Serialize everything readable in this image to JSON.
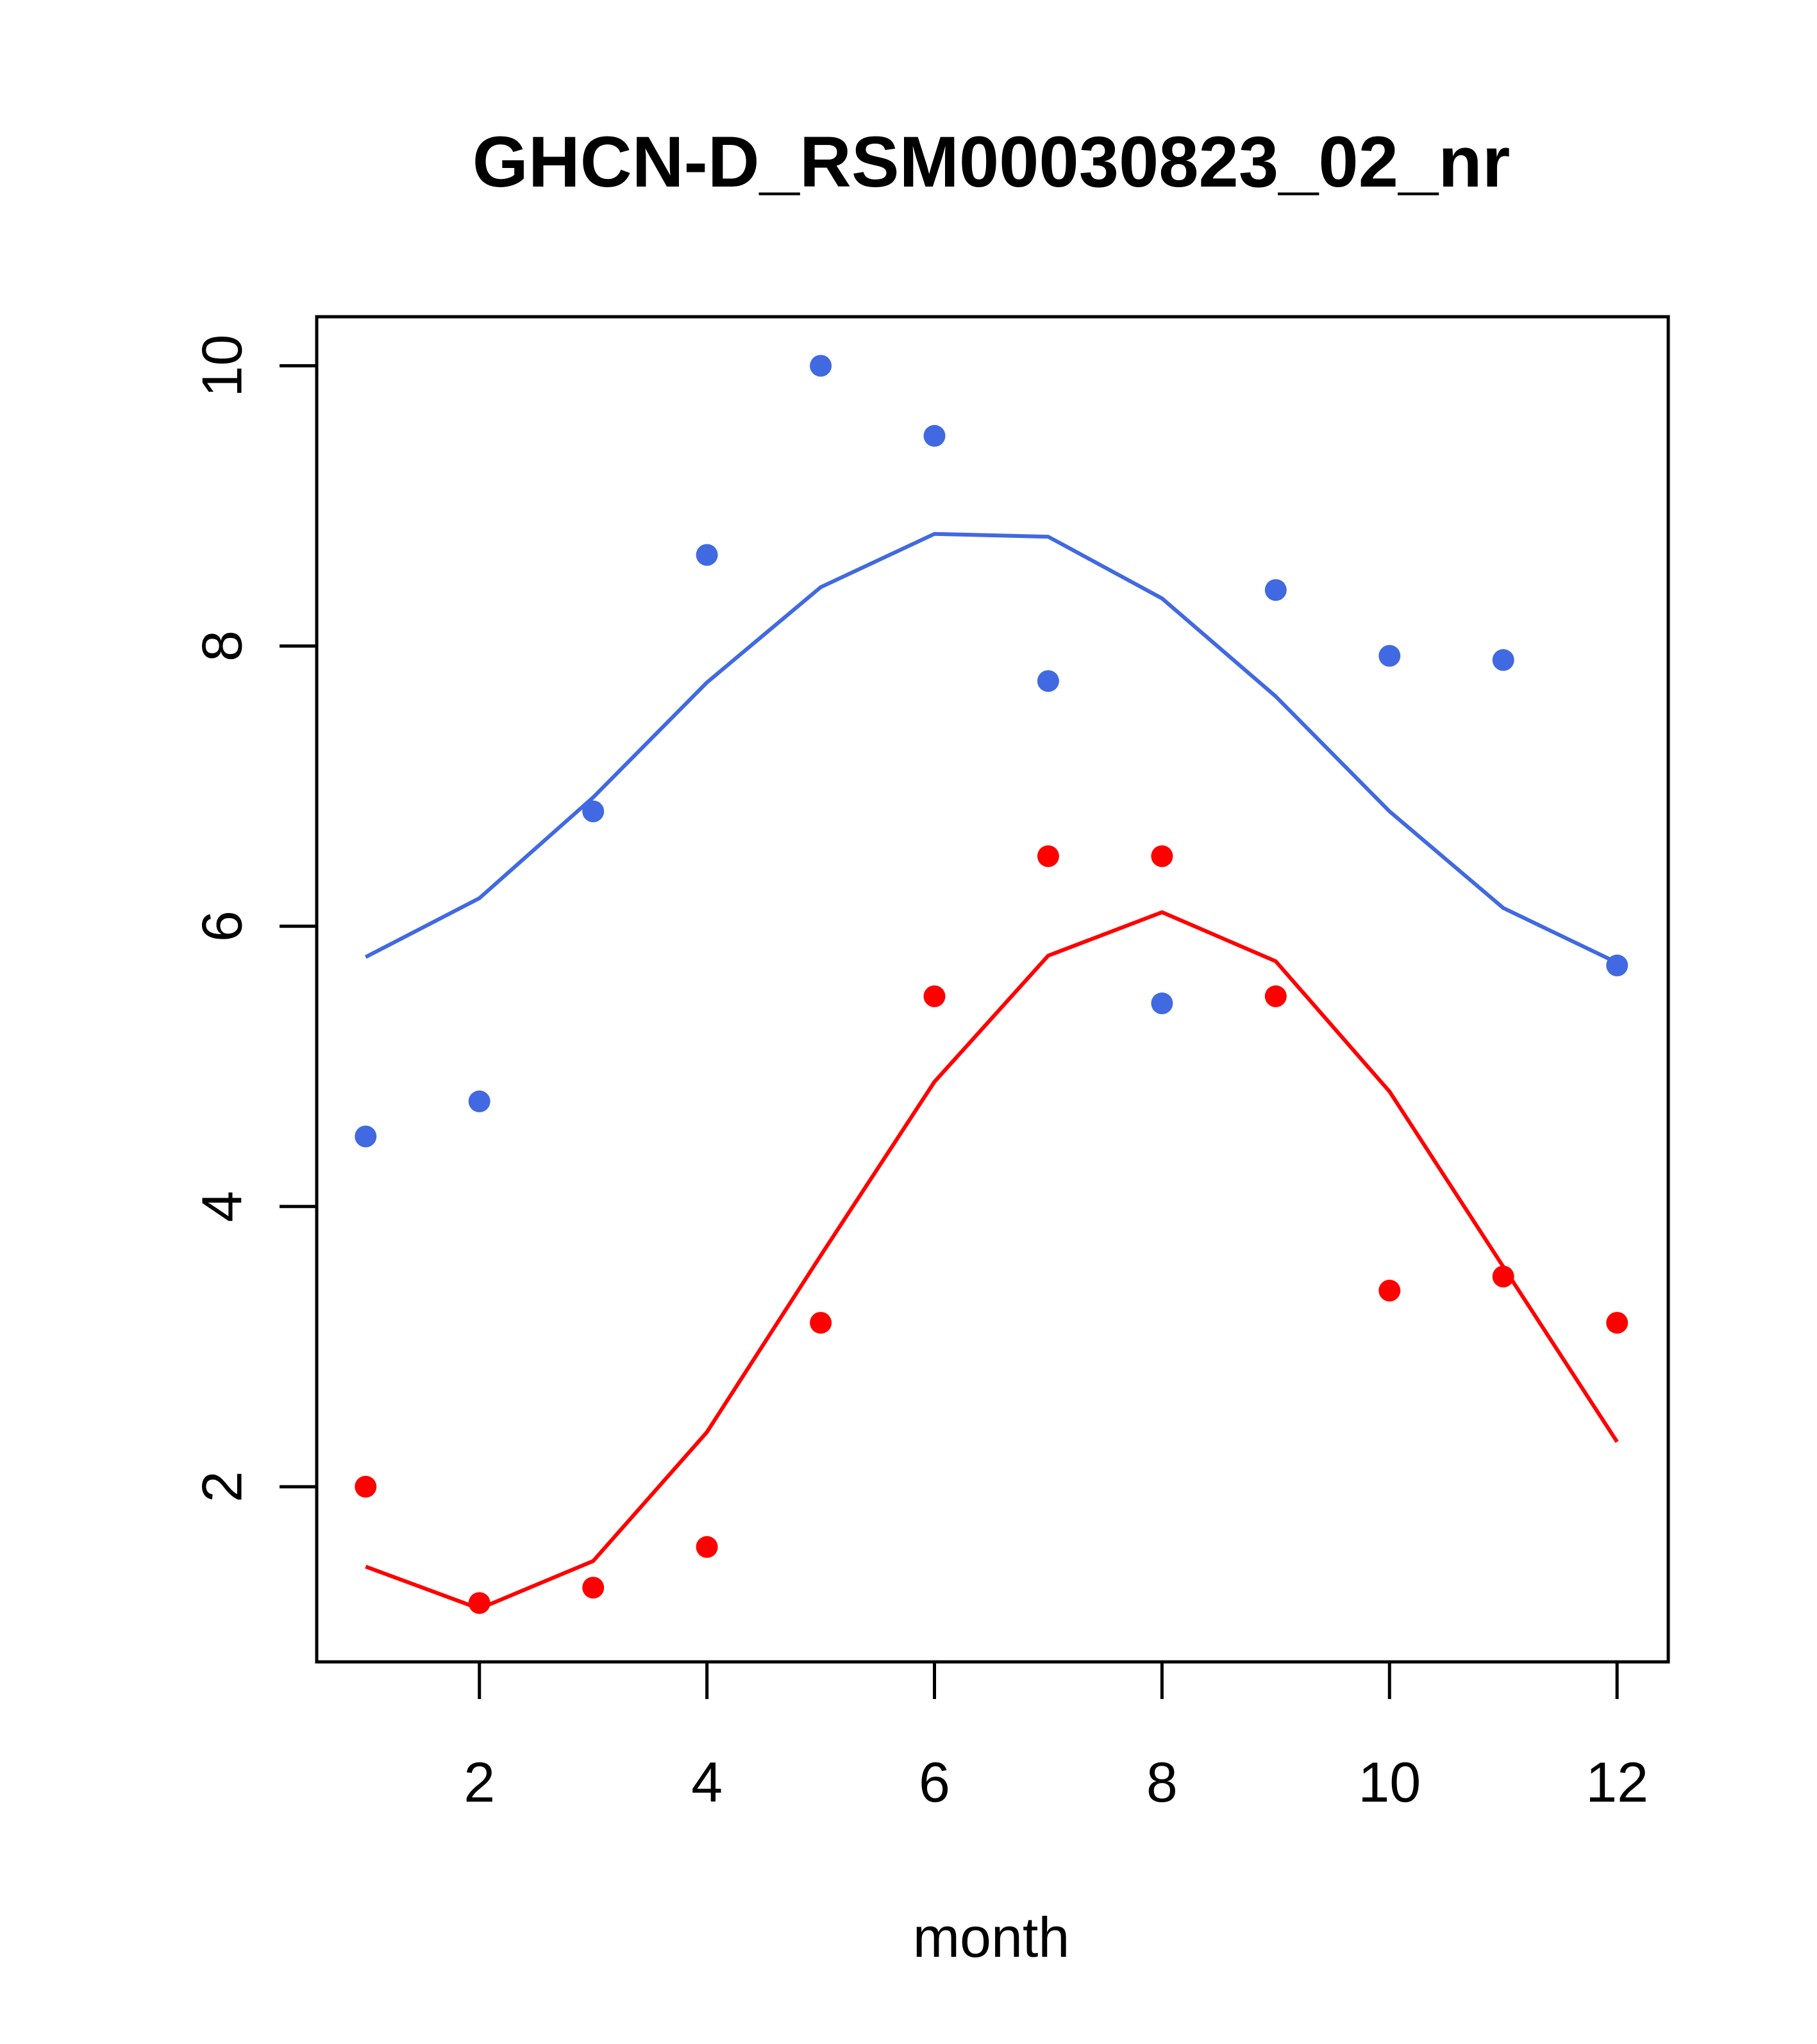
{
  "chart_data": {
    "type": "scatter",
    "title": "GHCN-D_RSM00030823_02_nr",
    "xlabel": "month",
    "ylabel": "",
    "xlim": [
      0.57,
      12.45
    ],
    "ylim": [
      0.75,
      10.35
    ],
    "x_ticks": [
      "2",
      "4",
      "6",
      "8",
      "10",
      "12"
    ],
    "y_ticks": [
      "2",
      "4",
      "6",
      "8",
      "10"
    ],
    "grid": false,
    "legend": "none",
    "x": [
      1,
      2,
      3,
      4,
      5,
      6,
      7,
      8,
      9,
      10,
      11,
      12
    ],
    "series": [
      {
        "color": "#4169E1",
        "points": [
          4.5,
          4.75,
          6.82,
          8.65,
          10.0,
          9.5,
          7.75,
          5.45,
          8.4,
          7.93,
          7.9,
          5.72
        ],
        "line": [
          5.78,
          6.2,
          6.92,
          7.74,
          8.42,
          8.8,
          8.78,
          8.34,
          7.64,
          6.82,
          6.13,
          5.74
        ]
      },
      {
        "color": "#FF0000",
        "points": [
          2.0,
          1.17,
          1.28,
          1.57,
          3.17,
          5.5,
          6.5,
          6.5,
          5.5,
          3.4,
          3.5,
          3.17
        ],
        "line": [
          1.43,
          1.13,
          1.47,
          2.39,
          3.65,
          4.89,
          5.79,
          6.1,
          5.75,
          4.82,
          3.57,
          2.32
        ]
      }
    ]
  }
}
